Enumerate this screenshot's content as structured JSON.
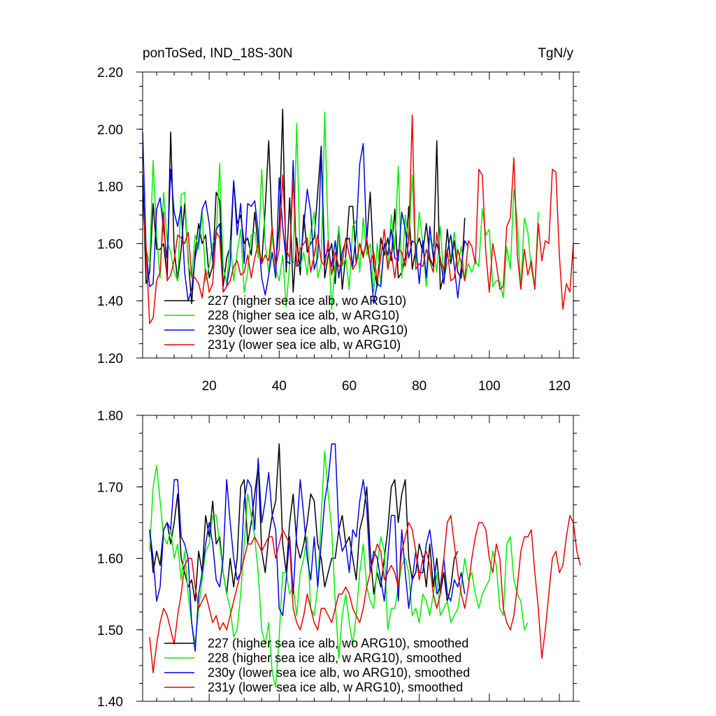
{
  "chart_data": [
    {
      "type": "line",
      "title": "ponToSed, IND_18S-30N",
      "units": "TgN/y",
      "xlabel": "",
      "ylabel": "",
      "xlim": [
        1,
        124
      ],
      "ylim": [
        1.2,
        2.2
      ],
      "yticks": [
        "1.20",
        "1.40",
        "1.60",
        "1.80",
        "2.00",
        "2.20"
      ],
      "xticks": [
        "20",
        "40",
        "60",
        "80",
        "100",
        "120"
      ],
      "legend_position": "bottom-left",
      "series": [
        {
          "name": "227 (higher sea ice alb, wo ARG10)",
          "color": "#000000",
          "x_start": 1,
          "values": [
            1.84,
            1.46,
            1.5,
            1.74,
            1.58,
            1.58,
            1.6,
            1.48,
            1.99,
            1.58,
            1.47,
            1.58,
            1.74,
            1.55,
            1.39,
            1.57,
            1.67,
            1.6,
            1.63,
            1.48,
            1.52,
            1.78,
            1.75,
            1.45,
            1.55,
            1.59,
            1.82,
            1.67,
            1.7,
            1.6,
            1.62,
            1.56,
            1.71,
            1.59,
            1.53,
            1.72,
            1.96,
            1.64,
            1.53,
            1.66,
            2.07,
            1.5,
            1.76,
            1.43,
            1.62,
            1.49,
            1.7,
            1.57,
            1.6,
            1.62,
            1.78,
            1.94,
            1.48,
            1.56,
            1.6,
            1.46,
            1.66,
            1.44,
            1.56,
            1.73,
            1.73,
            1.53,
            1.6,
            1.56,
            1.61,
            1.78,
            1.52,
            1.45,
            1.62,
            1.56,
            1.62,
            1.54,
            1.72,
            1.48,
            1.5,
            1.55,
            1.73,
            1.51,
            1.58,
            1.62,
            1.57,
            1.67,
            1.55,
            1.52,
            1.96,
            1.44,
            1.49,
            1.65,
            1.53,
            1.61,
            1.5,
            1.48,
            1.69
          ]
        },
        {
          "name": "228 (higher sea ice alb, w ARG10)",
          "color": "#00ee00",
          "x_start": 1,
          "values": [
            1.73,
            1.58,
            1.53,
            1.89,
            1.63,
            1.48,
            1.78,
            1.61,
            1.57,
            1.5,
            1.47,
            1.77,
            1.78,
            1.53,
            1.48,
            1.63,
            1.58,
            1.71,
            1.47,
            1.52,
            1.6,
            1.62,
            1.88,
            1.52,
            1.46,
            1.61,
            1.47,
            1.57,
            1.65,
            1.43,
            1.5,
            1.63,
            1.64,
            1.55,
            1.86,
            1.6,
            1.5,
            1.63,
            1.51,
            1.47,
            1.56,
            1.38,
            1.53,
            1.53,
            2.02,
            1.52,
            1.57,
            1.49,
            1.64,
            1.71,
            1.48,
            1.53,
            2.06,
            1.62,
            1.37,
            1.53,
            1.66,
            1.52,
            1.55,
            1.44,
            1.66,
            1.68,
            1.5,
            1.69,
            1.56,
            1.6,
            1.43,
            1.6,
            1.46,
            1.6,
            1.52,
            1.7,
            1.58,
            1.87,
            1.48,
            1.7,
            1.6,
            1.84,
            1.53,
            1.71,
            1.6,
            1.45,
            1.62,
            1.59,
            1.5,
            1.66,
            1.48,
            1.53,
            1.55,
            1.64,
            1.52,
            1.59,
            1.47,
            1.53,
            1.5,
            1.54,
            1.52,
            1.72,
            1.63,
            1.65,
            1.45,
            1.47,
            1.47,
            1.41,
            1.59,
            1.51,
            1.79,
            1.68,
            1.44,
            1.69,
            1.64,
            1.51,
            1.45,
            1.71
          ]
        },
        {
          "name": "230y (lower sea ice alb, wo ARG10)",
          "color": "#0000ee",
          "x_start": 1,
          "values": [
            1.99,
            1.58,
            1.45,
            1.46,
            1.72,
            1.76,
            1.65,
            1.55,
            1.86,
            1.71,
            1.66,
            1.73,
            1.5,
            1.4,
            1.44,
            1.55,
            1.61,
            1.72,
            1.75,
            1.67,
            1.54,
            1.65,
            1.67,
            1.43,
            1.45,
            1.53,
            1.82,
            1.63,
            1.74,
            1.53,
            1.74,
            1.73,
            1.75,
            1.64,
            1.48,
            1.42,
            1.49,
            1.57,
            1.48,
            1.83,
            1.66,
            1.54,
            1.53,
            1.89,
            1.52,
            1.53,
            1.66,
            1.79,
            1.71,
            1.51,
            1.55,
            1.92,
            1.55,
            1.58,
            1.52,
            1.61,
            1.48,
            1.57,
            1.61,
            1.62,
            1.52,
            1.64,
            1.88,
            1.95,
            1.6,
            1.53,
            1.39,
            1.46,
            1.45,
            1.6,
            1.56,
            1.65,
            1.55,
            1.54,
            1.71,
            1.65,
            1.55,
            1.61,
            1.6,
            1.46,
            1.61,
            1.48,
            1.66,
            1.55,
            1.6,
            1.55,
            1.46,
            1.57,
            1.63,
            1.52,
            1.41,
            1.52,
            1.61,
            1.59
          ]
        },
        {
          "name": "231y (lower sea ice alb, w ARG10)",
          "color": "#ee0000",
          "x_start": 1,
          "values": [
            1.74,
            1.58,
            1.32,
            1.34,
            1.47,
            1.5,
            1.71,
            1.47,
            1.49,
            1.54,
            1.63,
            1.62,
            1.6,
            1.64,
            1.49,
            1.48,
            1.46,
            1.41,
            1.51,
            1.43,
            1.46,
            1.64,
            1.62,
            1.43,
            1.45,
            1.47,
            1.52,
            1.54,
            1.49,
            1.5,
            1.56,
            1.48,
            1.55,
            1.6,
            1.53,
            1.56,
            1.54,
            1.66,
            1.52,
            1.58,
            1.84,
            1.58,
            1.55,
            1.83,
            1.52,
            1.58,
            1.6,
            1.62,
            1.5,
            1.56,
            1.63,
            1.54,
            1.52,
            1.61,
            1.49,
            1.57,
            1.52,
            1.53,
            1.62,
            1.56,
            1.51,
            1.53,
            1.6,
            1.55,
            1.62,
            1.53,
            1.57,
            1.47,
            1.55,
            1.65,
            1.51,
            1.57,
            1.48,
            1.58,
            1.57,
            1.52,
            1.61,
            2.05,
            1.51,
            1.53,
            1.52,
            1.58,
            1.54,
            1.5,
            1.64,
            1.54,
            1.51,
            1.58,
            1.47,
            1.48,
            1.58,
            1.53,
            1.47,
            1.61,
            1.59,
            1.53,
            1.86,
            1.84,
            1.57,
            1.43,
            1.6,
            1.53,
            1.44,
            1.45,
            1.66,
            1.69,
            1.9,
            1.56,
            1.44,
            1.58,
            1.49,
            1.54,
            1.44,
            1.67,
            1.54,
            1.61,
            1.6,
            1.86,
            1.85,
            1.56,
            1.37,
            1.46,
            1.43,
            1.6
          ]
        }
      ]
    },
    {
      "type": "line",
      "title": "",
      "xlabel": "",
      "ylabel": "",
      "xlim": [
        1,
        124
      ],
      "ylim": [
        1.4,
        1.8
      ],
      "yticks": [
        "1.40",
        "1.50",
        "1.60",
        "1.70",
        "1.80"
      ],
      "legend_position": "bottom-left",
      "series": [
        {
          "name": "227 (higher sea ice alb, wo ARG10), smoothed",
          "color": "#000000",
          "x_start": 3,
          "values": [
            1.64,
            1.58,
            1.61,
            1.59,
            1.64,
            1.65,
            1.62,
            1.65,
            1.69,
            1.6,
            1.58,
            1.56,
            1.57,
            1.54,
            1.61,
            1.58,
            1.66,
            1.63,
            1.68,
            1.62,
            1.63,
            1.58,
            1.55,
            1.6,
            1.56,
            1.6,
            1.7,
            1.71,
            1.62,
            1.65,
            1.69,
            1.73,
            1.61,
            1.58,
            1.63,
            1.66,
            1.68,
            1.76,
            1.62,
            1.58,
            1.65,
            1.69,
            1.62,
            1.6,
            1.62,
            1.65,
            1.69,
            1.68,
            1.62,
            1.6,
            1.56,
            1.58,
            1.6,
            1.6,
            1.64,
            1.66,
            1.62,
            1.63,
            1.6,
            1.57,
            1.64,
            1.66,
            1.7,
            1.61,
            1.55,
            1.58,
            1.56,
            1.6,
            1.64,
            1.7,
            1.71,
            1.65,
            1.69,
            1.71,
            1.6,
            1.57,
            1.58,
            1.62,
            1.6,
            1.56,
            1.62,
            1.56,
            1.6,
            1.55,
            1.58,
            1.54,
            1.56,
            1.6,
            1.61
          ]
        },
        {
          "name": "228 (higher sea ice alb, w ARG10), smoothed",
          "color": "#00ee00",
          "x_start": 3,
          "values": [
            1.61,
            1.7,
            1.73,
            1.68,
            1.63,
            1.62,
            1.64,
            1.6,
            1.62,
            1.57,
            1.61,
            1.55,
            1.51,
            1.48,
            1.53,
            1.57,
            1.61,
            1.62,
            1.66,
            1.66,
            1.62,
            1.58,
            1.55,
            1.53,
            1.49,
            1.5,
            1.55,
            1.62,
            1.69,
            1.66,
            1.63,
            1.58,
            1.5,
            1.48,
            1.51,
            1.44,
            1.42,
            1.49,
            1.58,
            1.58,
            1.55,
            1.56,
            1.52,
            1.58,
            1.6,
            1.63,
            1.53,
            1.52,
            1.56,
            1.66,
            1.75,
            1.69,
            1.64,
            1.54,
            1.46,
            1.52,
            1.55,
            1.51,
            1.48,
            1.52,
            1.58,
            1.62,
            1.56,
            1.54,
            1.53,
            1.59,
            1.63,
            1.61,
            1.5,
            1.53,
            1.53,
            1.56,
            1.59,
            1.6,
            1.58,
            1.52,
            1.53,
            1.51,
            1.55,
            1.54,
            1.52,
            1.55,
            1.58,
            1.52,
            1.53,
            1.54,
            1.51,
            1.52,
            1.53,
            1.56,
            1.6,
            1.57,
            1.58,
            1.55,
            1.53,
            1.55,
            1.56,
            1.57,
            1.61,
            1.59,
            1.53,
            1.52,
            1.62,
            1.63,
            1.57,
            1.55,
            1.54,
            1.5,
            1.51
          ]
        },
        {
          "name": "230y (lower sea ice alb, wo ARG10), smoothed",
          "color": "#0000ee",
          "x_start": 3,
          "values": [
            1.64,
            1.6,
            1.54,
            1.56,
            1.64,
            1.65,
            1.64,
            1.71,
            1.71,
            1.63,
            1.62,
            1.6,
            1.51,
            1.47,
            1.55,
            1.58,
            1.62,
            1.65,
            1.62,
            1.57,
            1.56,
            1.6,
            1.71,
            1.65,
            1.6,
            1.57,
            1.58,
            1.68,
            1.71,
            1.7,
            1.64,
            1.74,
            1.65,
            1.68,
            1.72,
            1.66,
            1.64,
            1.53,
            1.52,
            1.57,
            1.63,
            1.55,
            1.64,
            1.71,
            1.66,
            1.6,
            1.57,
            1.63,
            1.56,
            1.62,
            1.68,
            1.71,
            1.76,
            1.76,
            1.64,
            1.61,
            1.62,
            1.58,
            1.64,
            1.63,
            1.68,
            1.71,
            1.67,
            1.58,
            1.61,
            1.6,
            1.57,
            1.54,
            1.6,
            1.66,
            1.66,
            1.54,
            1.64,
            1.58,
            1.53,
            1.57,
            1.61,
            1.58,
            1.58,
            1.62,
            1.64,
            1.6,
            1.55,
            1.56,
            1.6,
            1.55,
            1.54,
            1.57,
            1.56,
            1.58,
            1.55
          ]
        },
        {
          "name": "231y (lower sea ice alb, w ARG10), smoothed",
          "color": "#ee0000",
          "x_start": 3,
          "values": [
            1.49,
            1.44,
            1.48,
            1.51,
            1.53,
            1.52,
            1.5,
            1.48,
            1.52,
            1.55,
            1.59,
            1.6,
            1.6,
            1.56,
            1.53,
            1.54,
            1.55,
            1.53,
            1.51,
            1.52,
            1.5,
            1.51,
            1.5,
            1.52,
            1.54,
            1.56,
            1.58,
            1.6,
            1.62,
            1.62,
            1.63,
            1.62,
            1.61,
            1.62,
            1.63,
            1.63,
            1.6,
            1.62,
            1.64,
            1.63,
            1.62,
            1.53,
            1.51,
            1.5,
            1.52,
            1.55,
            1.53,
            1.51,
            1.5,
            1.53,
            1.53,
            1.52,
            1.51,
            1.53,
            1.55,
            1.55,
            1.56,
            1.55,
            1.53,
            1.52,
            1.51,
            1.53,
            1.56,
            1.58,
            1.6,
            1.62,
            1.61,
            1.57,
            1.58,
            1.59,
            1.58,
            1.56,
            1.61,
            1.63,
            1.65,
            1.64,
            1.61,
            1.57,
            1.6,
            1.61,
            1.59,
            1.55,
            1.53,
            1.55,
            1.6,
            1.65,
            1.66,
            1.62,
            1.58,
            1.55,
            1.53,
            1.56,
            1.6,
            1.63,
            1.65,
            1.65,
            1.64,
            1.6,
            1.58,
            1.62,
            1.6,
            1.53,
            1.51,
            1.5,
            1.52,
            1.56,
            1.61,
            1.63,
            1.63,
            1.64,
            1.58,
            1.53,
            1.46,
            1.5,
            1.55,
            1.6,
            1.61,
            1.58,
            1.59,
            1.63,
            1.66,
            1.65,
            1.61,
            1.59
          ]
        }
      ]
    }
  ]
}
